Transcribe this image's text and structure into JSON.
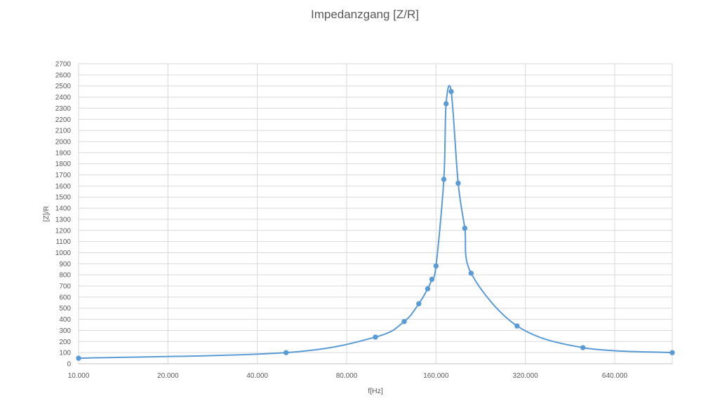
{
  "chart_data": {
    "type": "scatter",
    "title": "Impedanzgang [Z/R]",
    "xlabel": "f[Hz]",
    "ylabel": "[Z]/R",
    "x_scale": "log2",
    "xlim": [
      10000,
      1000000
    ],
    "ylim": [
      0,
      2700
    ],
    "y_tick_step": 100,
    "x_tick_values": [
      10000,
      20000,
      40000,
      80000,
      160000,
      320000,
      640000
    ],
    "x_tick_labels": [
      "10.000",
      "20.000",
      "40.000",
      "80.000",
      "160.000",
      "320.000",
      "640.000"
    ],
    "grid": true,
    "smooth_line": true,
    "color": "#5B9BD5",
    "series": [
      {
        "x": [
          10000,
          50000,
          100000,
          125000,
          140000,
          150000,
          155000,
          160000,
          170000,
          173000,
          180000,
          190000,
          200000,
          210000,
          300000,
          500000,
          1000000
        ],
        "y": [
          50,
          100,
          240,
          380,
          540,
          675,
          760,
          880,
          1660,
          2340,
          2450,
          1625,
          1220,
          815,
          340,
          145,
          100
        ]
      }
    ]
  }
}
